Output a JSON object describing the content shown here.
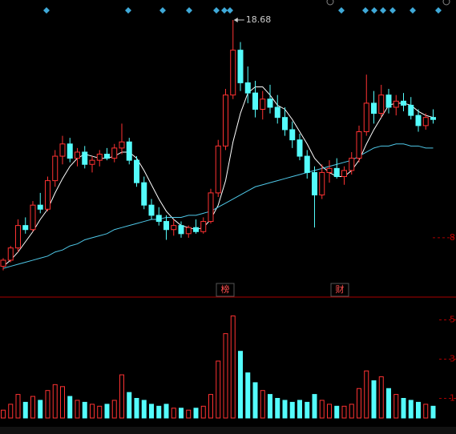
{
  "chart_data": [
    {
      "type": "candlestick",
      "annotation": "18.68",
      "event_labels": [
        "榜",
        "财"
      ],
      "open": [
        6.6,
        6.9,
        7.5,
        8.6,
        8.4,
        9.6,
        9.4,
        10.8,
        12.0,
        12.6,
        11.9,
        12.2,
        11.6,
        11.8,
        12.1,
        11.9,
        12.4,
        12.7,
        11.8,
        10.7,
        9.6,
        9.1,
        8.8,
        8.4,
        8.6,
        8.2,
        8.5,
        8.3,
        8.8,
        10.2,
        12.5,
        15.0,
        17.2,
        15.6,
        15.1,
        14.3,
        14.8,
        14.4,
        13.9,
        13.3,
        12.8,
        12.0,
        11.2,
        10.1,
        11.2,
        11.4,
        11.0,
        11.3,
        11.9,
        13.2,
        14.6,
        14.1,
        15.0,
        14.4,
        14.7,
        14.5,
        14.0,
        13.5,
        13.9
      ],
      "high": [
        7.0,
        7.6,
        8.9,
        9.0,
        9.8,
        10.2,
        11.0,
        12.3,
        13.0,
        12.9,
        12.4,
        12.5,
        12.0,
        12.3,
        12.4,
        12.6,
        13.6,
        12.9,
        12.0,
        11.0,
        9.9,
        9.5,
        9.1,
        8.9,
        8.8,
        8.6,
        8.9,
        9.0,
        10.4,
        12.8,
        15.3,
        18.68,
        17.6,
        16.4,
        15.7,
        15.2,
        15.5,
        15.0,
        14.4,
        13.7,
        13.1,
        12.3,
        11.5,
        11.6,
        11.8,
        11.9,
        11.5,
        12.2,
        13.5,
        16.0,
        15.2,
        15.5,
        15.3,
        15.0,
        15.1,
        14.9,
        14.3,
        14.1,
        14.3
      ],
      "low": [
        6.4,
        6.8,
        7.3,
        8.2,
        8.3,
        9.2,
        9.3,
        10.5,
        11.6,
        11.7,
        11.5,
        11.4,
        11.2,
        11.5,
        11.8,
        11.7,
        12.1,
        11.6,
        10.5,
        9.4,
        8.9,
        8.6,
        7.9,
        8.1,
        8.0,
        8.0,
        8.2,
        8.2,
        8.7,
        10.0,
        12.3,
        14.8,
        15.2,
        14.6,
        13.9,
        13.8,
        14.1,
        13.6,
        13.0,
        12.4,
        11.8,
        10.9,
        8.5,
        9.9,
        10.7,
        10.9,
        10.6,
        11.1,
        11.7,
        13.0,
        13.6,
        13.9,
        14.1,
        14.0,
        14.2,
        13.8,
        13.2,
        13.3,
        13.6
      ],
      "close": [
        6.9,
        7.5,
        8.6,
        8.4,
        9.6,
        9.4,
        10.8,
        12.0,
        12.6,
        11.9,
        12.2,
        11.6,
        11.8,
        12.1,
        11.9,
        12.4,
        12.7,
        11.8,
        10.7,
        9.6,
        9.1,
        8.8,
        8.4,
        8.6,
        8.2,
        8.5,
        8.3,
        8.8,
        10.2,
        12.5,
        15.0,
        17.2,
        15.6,
        15.1,
        14.3,
        14.8,
        14.4,
        13.9,
        13.3,
        12.8,
        12.0,
        11.2,
        10.1,
        11.2,
        11.4,
        11.0,
        11.3,
        11.9,
        13.2,
        14.6,
        14.1,
        15.0,
        14.4,
        14.7,
        14.5,
        14.0,
        13.5,
        13.9,
        13.8
      ],
      "lines": [
        {
          "color": "#ffffff",
          "values": [
            6.6,
            6.9,
            7.3,
            7.8,
            8.3,
            8.9,
            9.4,
            10.2,
            10.9,
            11.5,
            11.9,
            12.1,
            12.0,
            11.9,
            11.9,
            12.0,
            12.2,
            12.2,
            11.9,
            11.3,
            10.6,
            9.9,
            9.3,
            8.9,
            8.6,
            8.5,
            8.4,
            8.5,
            8.9,
            9.6,
            10.8,
            12.7,
            14.1,
            15.1,
            15.4,
            15.4,
            15.0,
            14.5,
            14.3,
            13.8,
            13.2,
            12.6,
            11.9,
            11.5,
            11.2,
            11.0,
            11.0,
            11.3,
            11.8,
            12.6,
            13.3,
            13.9,
            14.5,
            14.6,
            14.6,
            14.5,
            14.2,
            14.0,
            13.9
          ]
        },
        {
          "color": "#4fc8e8",
          "values": [
            6.5,
            6.6,
            6.7,
            6.8,
            6.9,
            7.0,
            7.1,
            7.3,
            7.4,
            7.6,
            7.7,
            7.9,
            8.0,
            8.1,
            8.2,
            8.4,
            8.5,
            8.6,
            8.7,
            8.8,
            8.9,
            8.9,
            9.0,
            9.0,
            9.0,
            9.1,
            9.1,
            9.2,
            9.3,
            9.5,
            9.7,
            9.9,
            10.1,
            10.3,
            10.5,
            10.6,
            10.7,
            10.8,
            10.9,
            11.0,
            11.1,
            11.2,
            11.3,
            11.4,
            11.5,
            11.6,
            11.7,
            11.8,
            12.0,
            12.2,
            12.4,
            12.5,
            12.5,
            12.6,
            12.6,
            12.5,
            12.5,
            12.4,
            12.4
          ]
        }
      ],
      "up_color": "#ff3232",
      "down_color": "#54fcfc",
      "ylim": [
        5.13,
        19.66
      ],
      "yticks": [
        8
      ]
    },
    {
      "type": "bar",
      "values": [
        0.4,
        0.7,
        1.2,
        0.8,
        1.1,
        0.9,
        1.4,
        1.7,
        1.6,
        1.1,
        0.9,
        0.8,
        0.7,
        0.6,
        0.7,
        0.9,
        2.2,
        1.3,
        1.0,
        0.9,
        0.7,
        0.6,
        0.7,
        0.5,
        0.5,
        0.4,
        0.5,
        0.6,
        1.2,
        2.9,
        4.3,
        5.2,
        3.4,
        2.3,
        1.8,
        1.4,
        1.2,
        1.0,
        0.9,
        0.8,
        0.9,
        0.8,
        1.2,
        0.9,
        0.7,
        0.6,
        0.6,
        0.7,
        1.5,
        2.4,
        1.9,
        2.1,
        1.5,
        1.2,
        1.0,
        0.9,
        0.8,
        0.7,
        0.6
      ],
      "ylim": [
        0,
        6
      ],
      "yticks": [
        1,
        3,
        5
      ]
    }
  ]
}
